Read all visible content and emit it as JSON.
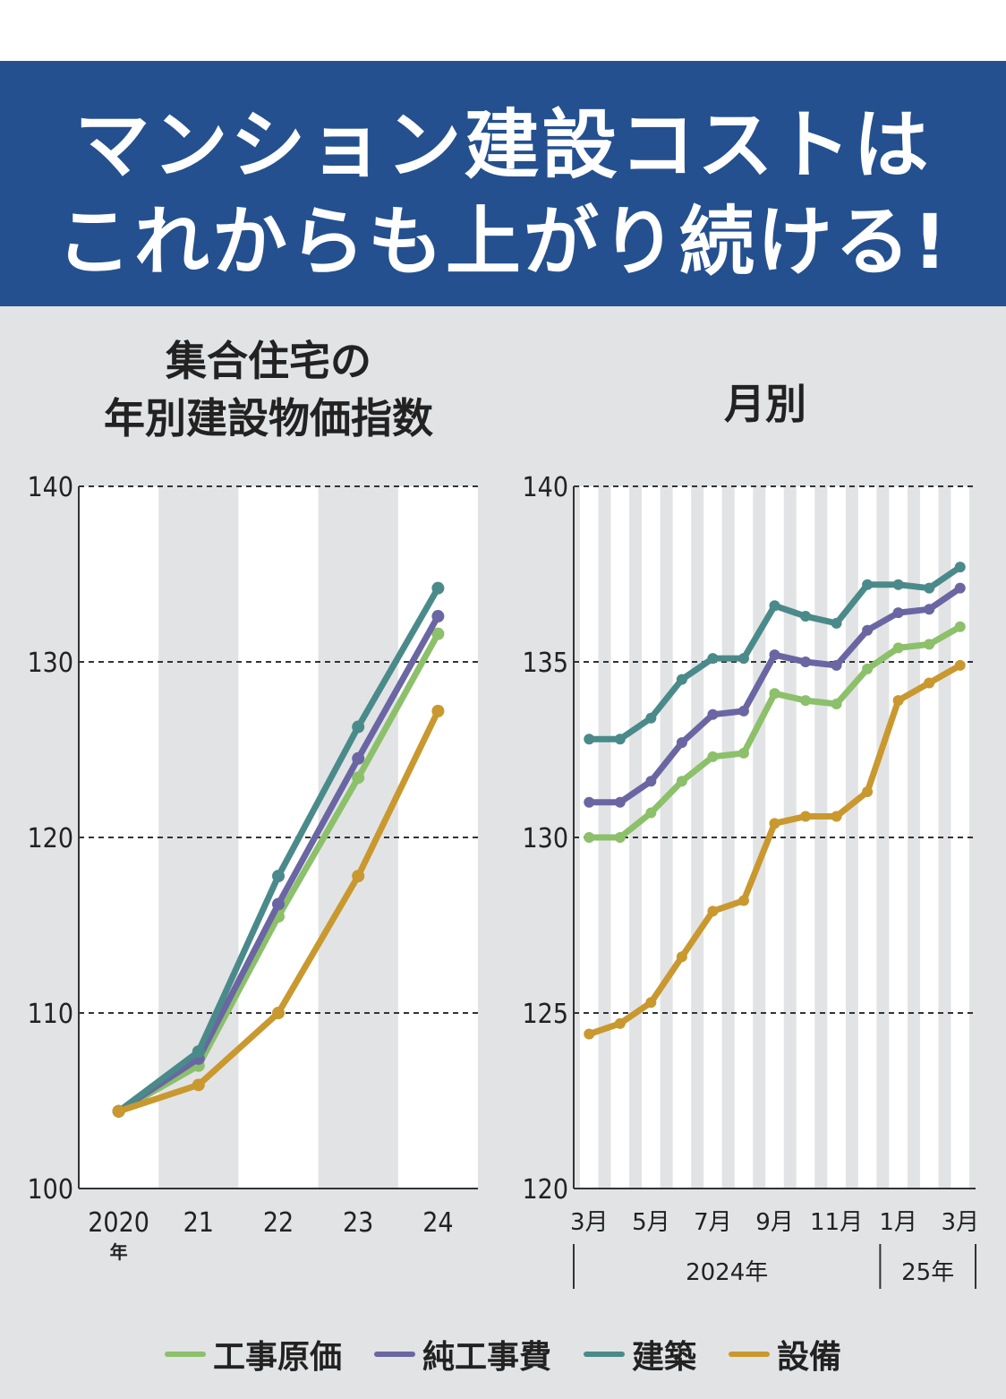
{
  "headline": {
    "line1": "マンション建設コストは",
    "line2": "これからも上がり続ける!"
  },
  "colors": {
    "banner": "#24508f",
    "background": "#e2e3e5",
    "工事原価": "#8cc06a",
    "純工事費": "#6a66a3",
    "建築": "#4b8a8a",
    "設備": "#c9982f"
  },
  "chart_data": [
    {
      "type": "line",
      "title_line1": "集合住宅の",
      "title_line2": "年別建設物価指数",
      "x": [
        "2020",
        "21",
        "22",
        "23",
        "24"
      ],
      "x_first_suffix": "年",
      "ylim": [
        100,
        140
      ],
      "yticks": [
        100,
        110,
        120,
        130,
        140
      ],
      "grid": "dashed",
      "series": [
        {
          "name": "工事原価",
          "values": [
            104.4,
            107.0,
            115.5,
            123.4,
            131.6
          ]
        },
        {
          "name": "純工事費",
          "values": [
            104.4,
            107.4,
            116.2,
            124.5,
            132.6
          ]
        },
        {
          "name": "建築",
          "values": [
            104.4,
            107.8,
            117.8,
            126.3,
            134.2
          ]
        },
        {
          "name": "設備",
          "values": [
            104.4,
            105.9,
            110.0,
            117.8,
            127.2
          ]
        }
      ]
    },
    {
      "type": "line",
      "title": "月別",
      "x": [
        "2024-03",
        "2024-04",
        "2024-05",
        "2024-06",
        "2024-07",
        "2024-08",
        "2024-09",
        "2024-10",
        "2024-11",
        "2024-12",
        "2025-01",
        "2025-02",
        "2025-03"
      ],
      "xtick_labels": [
        "3月",
        "5月",
        "7月",
        "9月",
        "11月",
        "1月",
        "3月"
      ],
      "period_labels": [
        "2024年",
        "25年"
      ],
      "ylim": [
        120,
        140
      ],
      "yticks": [
        120,
        125,
        130,
        135,
        140
      ],
      "grid": "dashed",
      "series": [
        {
          "name": "工事原価",
          "values": [
            130.0,
            130.0,
            130.7,
            131.6,
            132.3,
            132.4,
            134.1,
            133.9,
            133.8,
            134.8,
            135.4,
            135.5,
            136.0
          ]
        },
        {
          "name": "純工事費",
          "values": [
            131.0,
            131.0,
            131.6,
            132.7,
            133.5,
            133.6,
            135.2,
            135.0,
            134.9,
            135.9,
            136.4,
            136.5,
            137.1
          ]
        },
        {
          "name": "建築",
          "values": [
            132.8,
            132.8,
            133.4,
            134.5,
            135.1,
            135.1,
            136.6,
            136.3,
            136.1,
            137.2,
            137.2,
            137.1,
            137.7
          ]
        },
        {
          "name": "設備",
          "values": [
            124.4,
            124.7,
            125.3,
            126.6,
            127.9,
            128.2,
            130.4,
            130.6,
            130.6,
            131.3,
            133.9,
            134.4,
            134.9
          ]
        }
      ]
    }
  ],
  "legend": [
    "工事原価",
    "純工事費",
    "建築",
    "設備"
  ]
}
